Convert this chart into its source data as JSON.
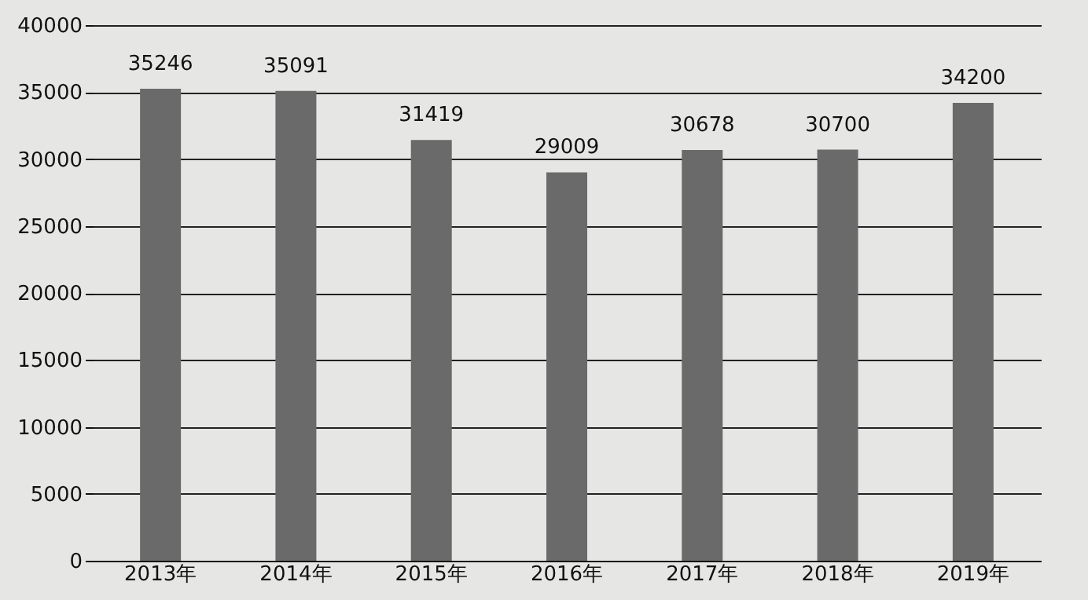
{
  "chart_data": {
    "type": "bar",
    "categories": [
      "2013年",
      "2014年",
      "2015年",
      "2016年",
      "2017年",
      "2018年",
      "2019年"
    ],
    "values": [
      35246,
      35091,
      31419,
      29009,
      30678,
      30700,
      34200
    ],
    "color": "#6a6a6a",
    "ylim": [
      0,
      40000
    ],
    "yticks": [
      0,
      5000,
      10000,
      15000,
      20000,
      25000,
      30000,
      35000,
      40000
    ],
    "grid": "y",
    "data_labels": true
  }
}
